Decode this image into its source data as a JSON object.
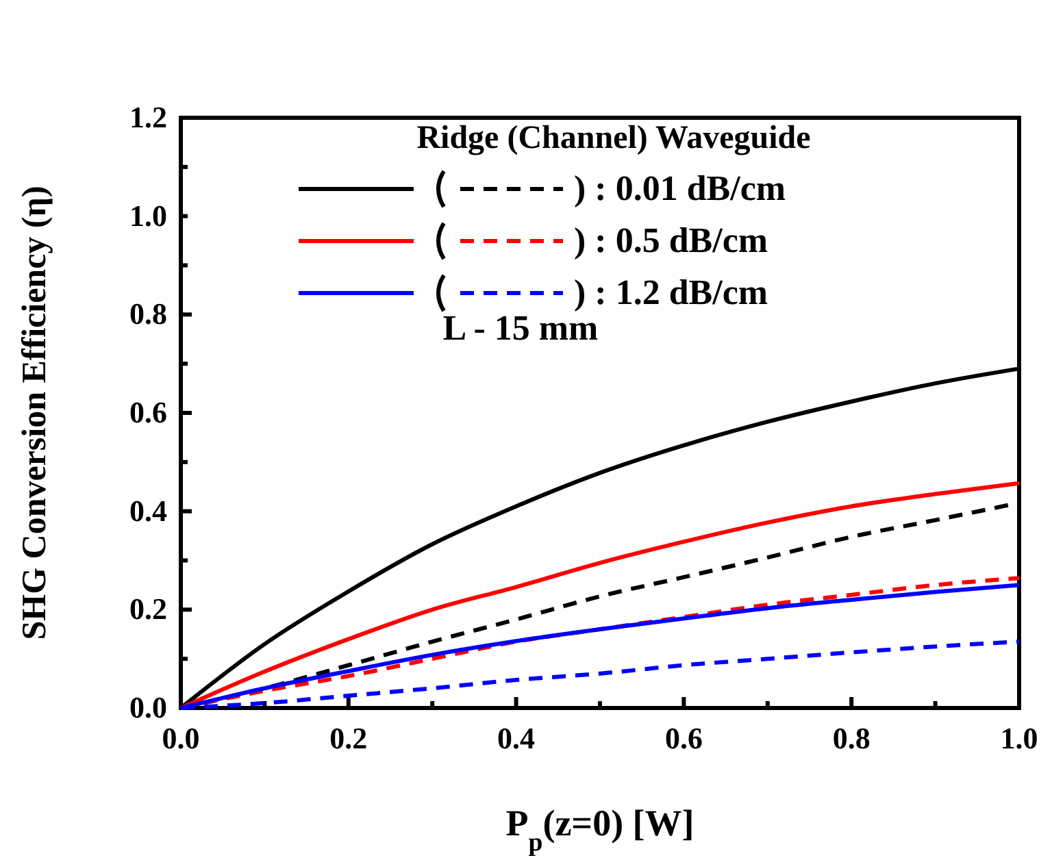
{
  "chart_data": {
    "type": "line",
    "xlabel": "P$_{p}$(z=0) [W]",
    "ylabel": "SHG Conversion Efficiency (η)",
    "legend_title": "Ridge (Channel) Waveguide",
    "legend": "top",
    "annotations": [
      "L - 15 mm"
    ],
    "x": [
      0,
      0.1,
      0.2,
      0.3,
      0.4,
      0.5,
      0.6,
      0.7,
      0.8,
      0.9,
      1.0
    ],
    "xlim": [
      0,
      1
    ],
    "ylim": [
      0,
      1.2
    ],
    "xticks": [
      {
        "value": 0,
        "label": "0.0"
      },
      {
        "value": 0.1,
        "label": null
      },
      0.2,
      {
        "value": 0.3,
        "label": null
      },
      0.4,
      {
        "value": 0.5,
        "label": null
      },
      0.6,
      {
        "value": 0.7,
        "label": null
      },
      0.8,
      {
        "value": 0.9,
        "label": null
      },
      {
        "value": 1,
        "label": "1.0"
      }
    ],
    "yticks": [
      {
        "value": 0,
        "label": "0.0"
      },
      {
        "value": 0.1,
        "label": null
      },
      0.2,
      {
        "value": 0.3,
        "label": null
      },
      0.4,
      {
        "value": 0.5,
        "label": null
      },
      0.6,
      {
        "value": 0.7,
        "label": null
      },
      0.8,
      {
        "value": 0.9,
        "label": null
      },
      {
        "value": 1,
        "label": "1.0"
      },
      {
        "value": 1.1,
        "label": null
      },
      1.2
    ],
    "series": [
      {
        "color": "#000000",
        "line_style": "solid",
        "values": [
          0,
          0.13,
          0.237,
          0.333,
          0.41,
          0.478,
          0.534,
          0.582,
          0.623,
          0.66,
          0.69
        ]
      },
      {
        "name": ") : 0.01 dB/cm",
        "color": "#000000",
        "line_style": "dashed",
        "values": [
          0,
          0.04,
          0.087,
          0.135,
          0.18,
          0.227,
          0.266,
          0.306,
          0.348,
          0.382,
          0.417
        ]
      },
      {
        "color": "#ff0000",
        "line_style": "solid",
        "values": [
          0,
          0.074,
          0.14,
          0.2,
          0.246,
          0.295,
          0.338,
          0.377,
          0.41,
          0.435,
          0.457
        ]
      },
      {
        "name": ") : 0.5 dB/cm",
        "color": "#ff0000",
        "line_style": "dashed",
        "values": [
          0,
          0.035,
          0.065,
          0.1,
          0.135,
          0.16,
          0.185,
          0.21,
          0.23,
          0.25,
          0.264
        ]
      },
      {
        "color": "#0000ff",
        "line_style": "solid",
        "values": [
          0,
          0.04,
          0.075,
          0.108,
          0.136,
          0.16,
          0.182,
          0.203,
          0.22,
          0.236,
          0.25
        ]
      },
      {
        "name": ") : 1.2 dB/cm",
        "color": "#0000ff",
        "line_style": "dashed",
        "values": [
          0,
          0.01,
          0.025,
          0.04,
          0.057,
          0.07,
          0.087,
          0.1,
          0.113,
          0.125,
          0.135
        ]
      }
    ]
  }
}
